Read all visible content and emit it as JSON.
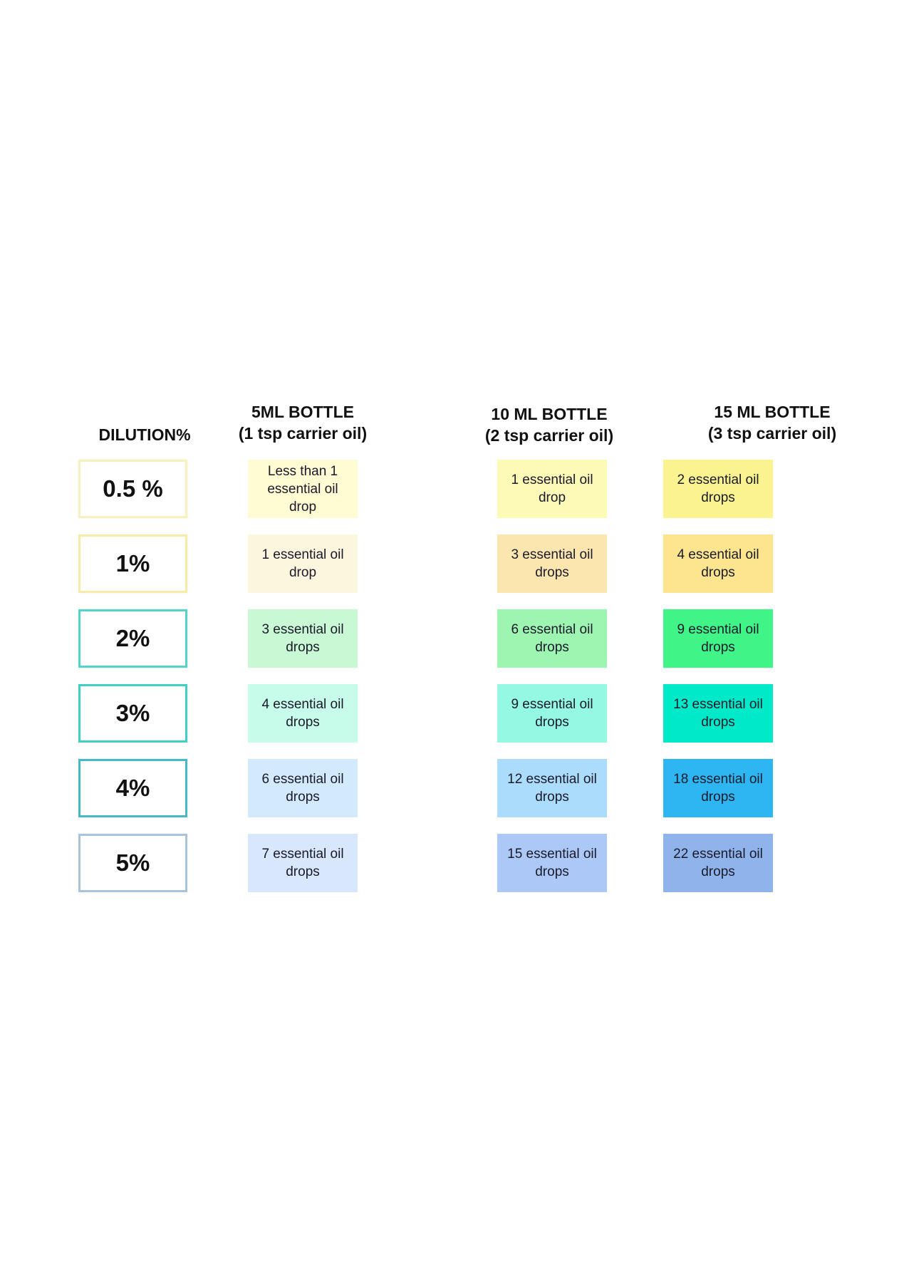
{
  "headers": {
    "dilution": "DILUTION%",
    "col5": {
      "line1": "5ML BOTTLE",
      "line2": "(1 tsp carrier oil)"
    },
    "col10": {
      "line1": "10 ML BOTTLE",
      "line2": "(2 tsp carrier oil)"
    },
    "col15": {
      "line1": "15 ML BOTTLE",
      "line2": "(3 tsp carrier oil)"
    }
  },
  "rows": [
    {
      "dilution": "0.5 %",
      "border": "#f5f2c0",
      "ml5": "Less than 1 essential oil drop",
      "ml10": "1 essential oil drop",
      "ml15": "2 essential oil drops",
      "c5": "#fffbd2",
      "c10": "#fdf9b6",
      "c15": "#faf38f"
    },
    {
      "dilution": "1%",
      "border": "#f4eca8",
      "ml5": "1 essential oil drop",
      "ml10": "3 essential oil drops",
      "ml15": "4 essential oil drops",
      "c5": "#fdf6de",
      "c10": "#fce6b0",
      "c15": "#fce58e"
    },
    {
      "dilution": "2%",
      "border": "#4fd6c6",
      "ml5": "3 essential oil drops",
      "ml10": "6 essential oil drops",
      "ml15": "9 essential oil drops",
      "c5": "#c9f9d4",
      "c10": "#9ef5b1",
      "c15": "#40f487"
    },
    {
      "dilution": "3%",
      "border": "#40cfc3",
      "ml5": "4 essential oil drops",
      "ml10": "9 essential oil drops",
      "ml15": "13 essential oil drops",
      "c5": "#c7fbea",
      "c10": "#94f8e3",
      "c15": "#00e9c8"
    },
    {
      "dilution": "4%",
      "border": "#46b9c6",
      "ml5": "6 essential oil drops",
      "ml10": "12 essential oil drops",
      "ml15": "18 essential oil drops",
      "c5": "#d2eafc",
      "c10": "#abdcfb",
      "c15": "#2eb6f3"
    },
    {
      "dilution": "5%",
      "border": "#a9c3d8",
      "ml5": "7 essential oil drops",
      "ml10": "15 essential oil drops",
      "ml15": "22 essential oil drops",
      "c5": "#d8e7fc",
      "c10": "#abc8f7",
      "c15": "#8fb4ec"
    }
  ]
}
